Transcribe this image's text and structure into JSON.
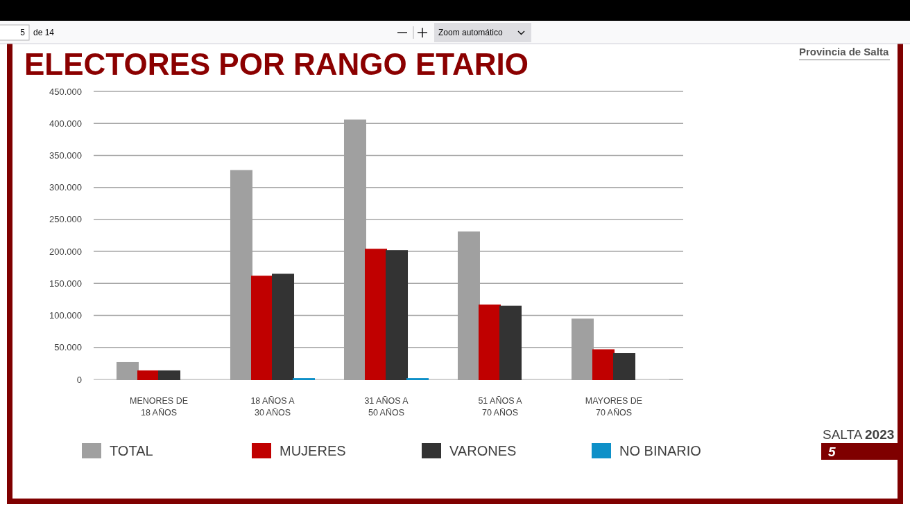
{
  "chart_data": {
    "type": "bar",
    "title": "ELECTORES POR RANGO ETARIO",
    "categories": [
      "MENORES DE 18 AÑOS",
      "18 AÑOS A 30 AÑOS",
      "31 AÑOS A 50 AÑOS",
      "51 AÑOS A 70 AÑOS",
      "MAYORES DE 70 AÑOS"
    ],
    "series": [
      {
        "name": "TOTAL",
        "color": "#a0a0a0",
        "values": [
          26000,
          326000,
          405000,
          230000,
          94000
        ]
      },
      {
        "name": "MUJERES",
        "color": "#c00000",
        "values": [
          13000,
          161000,
          203000,
          116000,
          46000
        ]
      },
      {
        "name": "VARONES",
        "color": "#333333",
        "values": [
          13000,
          164000,
          201000,
          114000,
          40000
        ]
      },
      {
        "name": "NO BINARIO",
        "color": "#0e90c8",
        "values": [
          null,
          1000,
          1000,
          null,
          null
        ]
      }
    ],
    "ylim": [
      0,
      450000
    ],
    "yticks": [
      0,
      {
        "value": 50000,
        "label": "50.000"
      },
      {
        "value": 100000,
        "label": "100.000"
      },
      {
        "value": 150000,
        "label": "150.000"
      },
      {
        "value": 200000,
        "label": "200.000"
      },
      {
        "value": 250000,
        "label": "250.000"
      },
      {
        "value": 300000,
        "label": "300.000"
      },
      {
        "value": 350000,
        "label": "350.000"
      },
      {
        "value": 400000,
        "label": "400.000"
      },
      {
        "value": 450000,
        "label": "450.000"
      }
    ],
    "grid": "y",
    "legend": "bottom",
    "annotations": [
      "5",
      "de 14",
      "Zoom automático",
      "Provincia de Salta",
      "SALTA",
      "2023",
      "5"
    ]
  }
}
